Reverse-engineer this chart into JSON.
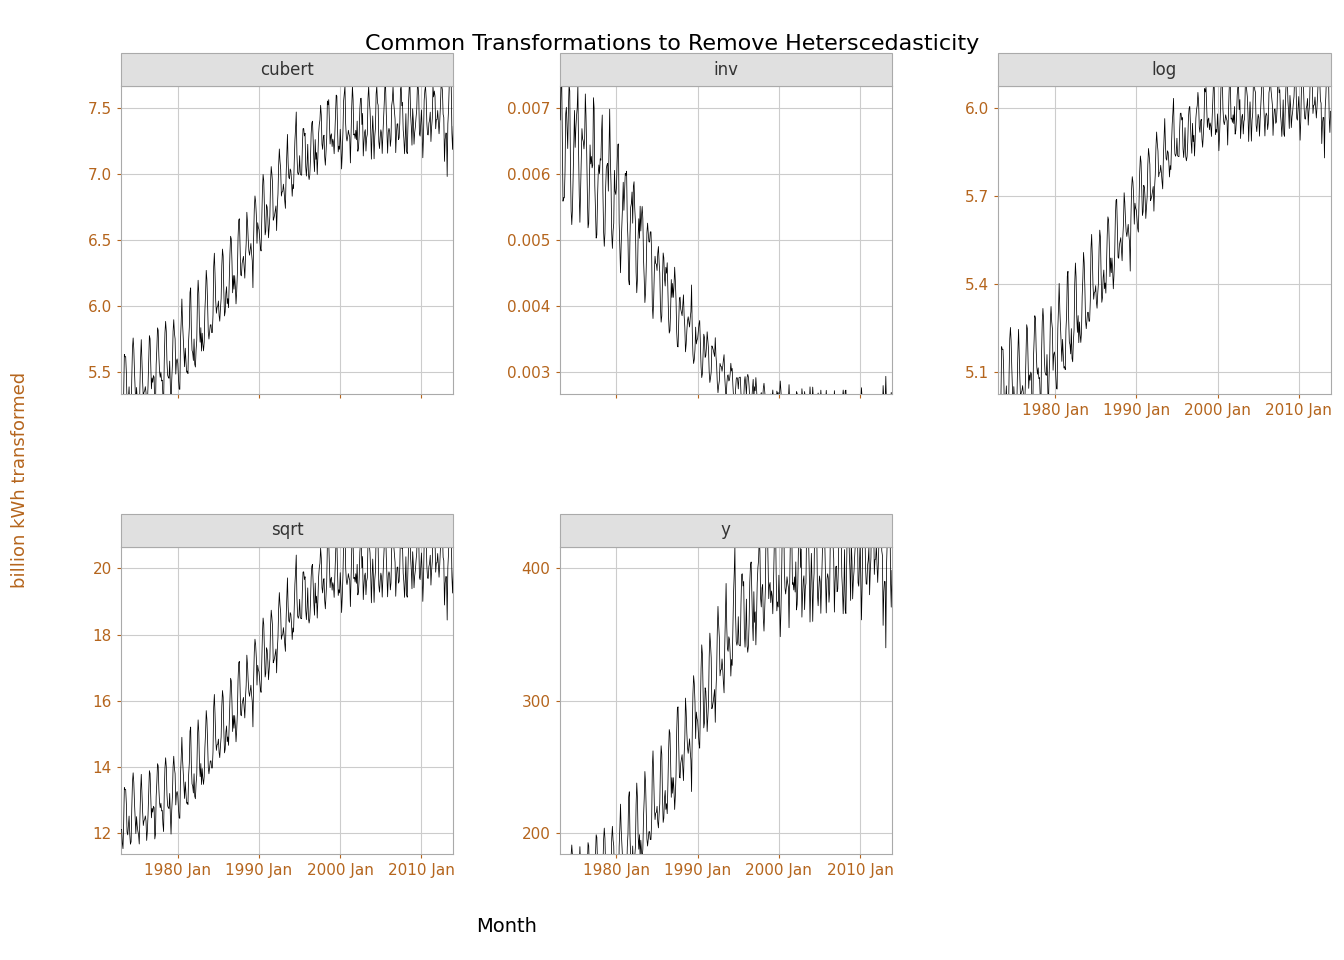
{
  "title": "Common Transformations to Remove Heterscedasticity",
  "ylabel": "billion kWh transformed",
  "xlabel": "Month",
  "panels": [
    "cubert",
    "inv",
    "log",
    "sqrt",
    "y"
  ],
  "background_color": "#ffffff",
  "panel_bg": "#ffffff",
  "strip_bg": "#e0e0e0",
  "grid_color": "#cccccc",
  "line_color": "#000000",
  "title_color": "#000000",
  "label_color": "#b5651d",
  "tick_label_color": "#b5651d",
  "strip_text_color": "#333333",
  "title_fontsize": 16,
  "strip_fontsize": 12,
  "axis_label_fontsize": 13,
  "tick_fontsize": 11,
  "n_months": 492,
  "start_year": 1973,
  "yticks_cubert": [
    5.5,
    6.0,
    6.5,
    7.0,
    7.5
  ],
  "yticks_inv": [
    0.003,
    0.004,
    0.005,
    0.006,
    0.007
  ],
  "yticks_log": [
    5.1,
    5.4,
    5.7,
    6.0
  ],
  "yticks_sqrt": [
    12,
    14,
    16,
    18,
    20
  ],
  "yticks_y": [
    200,
    300,
    400
  ],
  "xtick_years": [
    1980,
    1990,
    2000,
    2010
  ],
  "xtick_labels": [
    "1980 Jan",
    "1990 Jan",
    "2000 Jan",
    "2010 Jan"
  ]
}
